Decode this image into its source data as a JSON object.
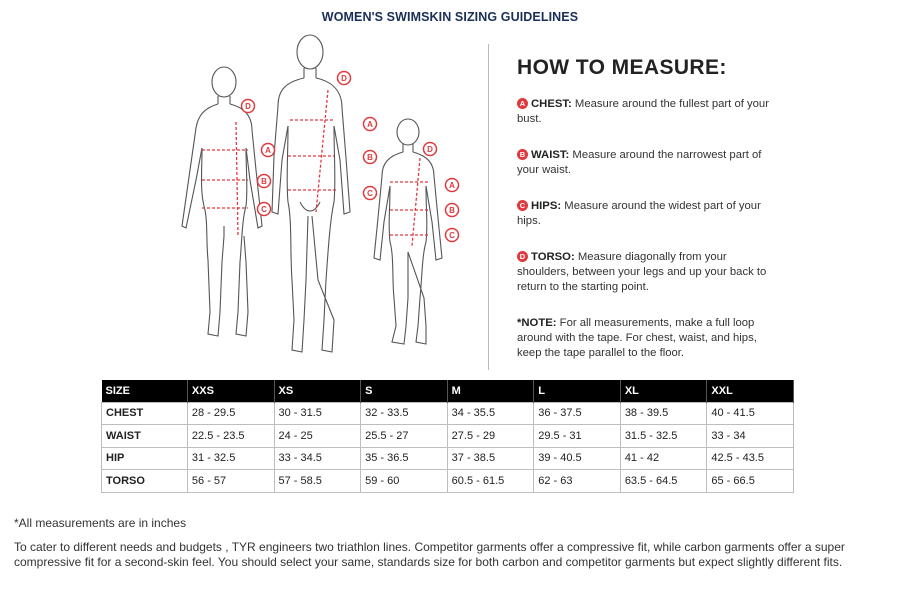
{
  "page": {
    "title": "WOMEN'S SWIMSKIN SIZING GUIDELINES"
  },
  "how_to": {
    "heading": "HOW TO MEASURE:",
    "steps": [
      {
        "badge": "A",
        "key": "CHEST:",
        "text": " Measure around the fullest part of your bust."
      },
      {
        "badge": "B",
        "key": "WAIST:",
        "text": " Measure around the narrowest part of your waist."
      },
      {
        "badge": "C",
        "key": "HIPS:",
        "text": " Measure around the widest part of your hips."
      },
      {
        "badge": "D",
        "key": "TORSO:",
        "text": " Measure diagonally from your shoulders, between your legs and up your back to return to the starting point."
      }
    ],
    "note_key": "*NOTE:",
    "note_text": " For all measurements, make a full loop around with the tape. For chest, waist, and hips, keep the tape parallel to the floor."
  },
  "figure_labels": {
    "a": "A",
    "b": "B",
    "c": "C",
    "d": "D"
  },
  "size_table": {
    "headers": [
      "SIZE",
      "XXS",
      "XS",
      "S",
      "M",
      "L",
      "XL",
      "XXL"
    ],
    "rows": [
      {
        "label": "CHEST",
        "values": [
          "28 - 29.5",
          "30 - 31.5",
          "32 - 33.5",
          "34 - 35.5",
          "36 - 37.5",
          "38 - 39.5",
          "40 - 41.5"
        ]
      },
      {
        "label": "WAIST",
        "values": [
          "22.5 - 23.5",
          "24 - 25",
          "25.5 - 27",
          "27.5 - 29",
          "29.5 - 31",
          "31.5 - 32.5",
          "33 - 34"
        ]
      },
      {
        "label": "HIP",
        "values": [
          "31 - 32.5",
          "33 - 34.5",
          "35 - 36.5",
          "37 - 38.5",
          "39 - 40.5",
          "41 - 42",
          "42.5 - 43.5"
        ]
      },
      {
        "label": "TORSO",
        "values": [
          "56 - 57",
          "57 - 58.5",
          "59 - 60",
          "60.5 - 61.5",
          "62 - 63",
          "63.5 - 64.5",
          "65 - 66.5"
        ]
      }
    ]
  },
  "footer": {
    "units_note": "*All measurements are in inches",
    "paragraph": "To cater to different needs and budgets , TYR engineers two triathlon lines. Competitor garments offer a compressive fit, while carbon garments offer a super compressive fit for a second-skin feel. You should select your same, standards size for both carbon and competitor garments but expect slightly different fits."
  },
  "colors": {
    "accent": "#e03a3e",
    "title": "#1a2f57",
    "table_header_bg": "#000000"
  }
}
